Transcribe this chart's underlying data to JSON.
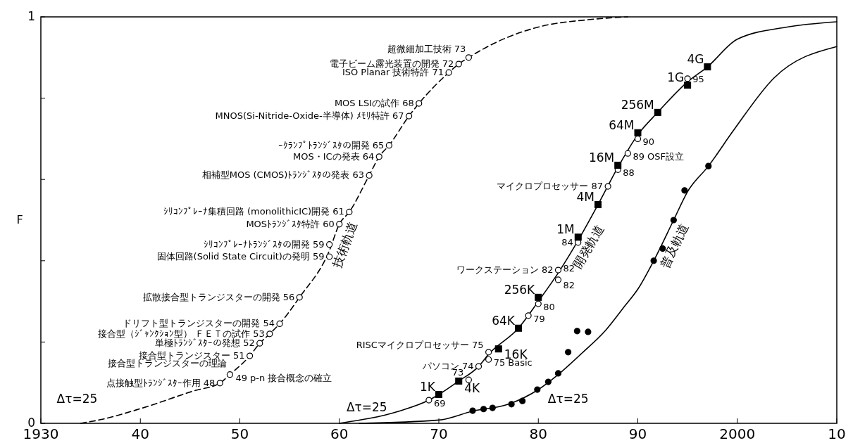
{
  "chart_data": {
    "type": "line",
    "ylabel": "F",
    "xlim": [
      1930,
      2010
    ],
    "xticks": [
      1930,
      {
        "value": 1940,
        "label": "40"
      },
      {
        "value": 1950,
        "label": "50"
      },
      {
        "value": 1960,
        "label": "60"
      },
      {
        "value": 1970,
        "label": "70"
      },
      {
        "value": 1980,
        "label": "80"
      },
      {
        "value": 1990,
        "label": "90"
      },
      2000,
      {
        "value": 2010,
        "label": "10"
      }
    ],
    "ylim": [
      0,
      1
    ],
    "yticks": [
      0,
      {
        "value": 0.2,
        "label": null
      },
      {
        "value": 0.4,
        "label": null
      },
      {
        "value": 0.6,
        "label": null
      },
      {
        "value": 0.8,
        "label": null
      },
      1
    ],
    "series": [
      {
        "name": "技術軌道",
        "color": "#000000",
        "line_style": "dashed",
        "x": [
          1934,
          1936,
          1940,
          1945.4,
          1948,
          1949,
          1951,
          1952,
          1953,
          1954,
          1956,
          1959,
          1960,
          1961,
          1963,
          1964,
          1965,
          1967,
          1968,
          1971,
          1972,
          1973,
          1976,
          1980,
          1985,
          1989
        ],
        "values": [
          0,
          0.009,
          0.036,
          0.08,
          0.099,
          0.12,
          0.166,
          0.197,
          0.22,
          0.245,
          0.31,
          0.425,
          0.49,
          0.52,
          0.61,
          0.656,
          0.684,
          0.756,
          0.787,
          0.863,
          0.884,
          0.9,
          0.94,
          0.975,
          0.993,
          1
        ]
      },
      {
        "name": "開発軌道",
        "color": "#000000",
        "line_style": "solid",
        "x": [
          1960,
          1966,
          1969,
          1970,
          1972,
          1974,
          1975,
          1978,
          1980,
          1982,
          1984,
          1986,
          1988,
          1990,
          1992,
          1995,
          1997,
          2000,
          2005,
          2010
        ],
        "values": [
          0,
          0.03,
          0.057,
          0.071,
          0.104,
          0.14,
          0.17,
          0.234,
          0.3,
          0.37,
          0.45,
          0.538,
          0.63,
          0.71,
          0.765,
          0.84,
          0.877,
          0.945,
          0.975,
          0.988
        ]
      },
      {
        "name": "普及軌道",
        "color": "#000000",
        "line_style": "solid",
        "x": [
          1962,
          1970,
          1973.4,
          1977,
          1980,
          1982,
          1984.4,
          1986.7,
          1988.7,
          1990,
          1991.6,
          1993.6,
          1995,
          1997.1,
          1999.6,
          2003.7,
          2010
        ],
        "values": [
          0,
          0.008,
          0.03,
          0.047,
          0.083,
          0.12,
          0.173,
          0.227,
          0.289,
          0.33,
          0.4,
          0.5,
          0.57,
          0.633,
          0.72,
          0.85,
          0.927
        ]
      },
      {
        "type": "scatter",
        "marker": "circle",
        "color": "#ffffff",
        "x": [
          1948,
          1949,
          1951,
          1952,
          1953,
          1954,
          1956,
          1959,
          1959,
          1960,
          1961,
          1963,
          1964,
          1965,
          1967,
          1968,
          1971,
          1972,
          1973
        ],
        "values": [
          0.099,
          0.12,
          0.166,
          0.197,
          0.22,
          0.245,
          0.31,
          0.41,
          0.44,
          0.49,
          0.52,
          0.61,
          0.656,
          0.684,
          0.756,
          0.787,
          0.863,
          0.884,
          0.9
        ]
      },
      {
        "type": "scatter",
        "marker": "circle",
        "color": "#ffffff",
        "x": [
          1969,
          1973,
          1974,
          1975,
          1975,
          1979,
          1980,
          1982,
          1982,
          1984,
          1987,
          1988,
          1989,
          1990,
          1995
        ],
        "values": [
          0.057,
          0.107,
          0.14,
          0.175,
          0.157,
          0.265,
          0.294,
          0.377,
          0.353,
          0.445,
          0.583,
          0.624,
          0.664,
          0.7,
          0.848
        ]
      },
      {
        "type": "scatter",
        "marker": "square",
        "color": "#000000",
        "x": [
          1970,
          1972,
          1976,
          1978,
          1980,
          1984,
          1986,
          1988,
          1990,
          1992,
          1995,
          1997
        ],
        "values": [
          0.071,
          0.104,
          0.183,
          0.234,
          0.31,
          0.458,
          0.538,
          0.635,
          0.715,
          0.765,
          0.832,
          0.877
        ]
      },
      {
        "type": "scatter",
        "marker": "circle",
        "color": "#000000",
        "x": [
          1973.4,
          1974.5,
          1975.4,
          1977.3,
          1978.4,
          1979.9,
          1981,
          1982,
          1983,
          1983.9,
          1985,
          1991.6,
          1992.5,
          1993.6,
          1994.7,
          1997.1
        ],
        "values": [
          0.031,
          0.035,
          0.038,
          0.047,
          0.055,
          0.083,
          0.102,
          0.123,
          0.175,
          0.227,
          0.225,
          0.4,
          0.43,
          0.5,
          0.573,
          0.633
        ]
      }
    ],
    "annotations": [
      {
        "text": "超微細加工技術 73",
        "x": 1973,
        "y": 0.9
      },
      {
        "text": "電子ビーム露光装置の開発 72",
        "x": 1972,
        "y": 0.884
      },
      {
        "text": "ISO Planar 技術特許 71",
        "x": 1971,
        "y": 0.863
      },
      {
        "text": "MOS LSIの試作 68",
        "x": 1968,
        "y": 0.787
      },
      {
        "text": "MNOS(Si-Nitride-Oxide-半導体) ﾒﾓﾘ特許 67",
        "x": 1967,
        "y": 0.756
      },
      {
        "text": "ｰｸﾗﾝﾌﾟﾄﾗﾝｼﾞｽﾀの開発 65",
        "x": 1965,
        "y": 0.684
      },
      {
        "text": "MOS・ICの発表 64",
        "x": 1964,
        "y": 0.656
      },
      {
        "text": "相補型MOS (CMOS)ﾄﾗﾝｼﾞｽﾀの発表 63",
        "x": 1963,
        "y": 0.61
      },
      {
        "text": "ｼﾘｺﾝﾌﾟﾚｰﾅ集積回路 (monolithicIC)開発 61",
        "x": 1961,
        "y": 0.52
      },
      {
        "text": "MOSﾄﾗﾝｼﾞｽﾀ特許 60",
        "x": 1960,
        "y": 0.49
      },
      {
        "text": "ｼﾘｺﾝﾌﾟﾚｰﾅﾄﾗﾝｼﾞｽﾀの開発 59",
        "x": 1959,
        "y": 0.44
      },
      {
        "text": "固体回路(Solid State Circuit)の発明 59",
        "x": 1959,
        "y": 0.41
      },
      {
        "text": "拡散接合型トランジスターの開発 56",
        "x": 1956,
        "y": 0.31
      },
      {
        "text": "ドリフト型トランジスターの開発 54",
        "x": 1954,
        "y": 0.245
      },
      {
        "text": "接合型（ｼﾞｬﾝｸｼｮﾝ型） ＦＥＴの試作 53",
        "x": 1953,
        "y": 0.22
      },
      {
        "text": "単極ﾄﾗﾝｼﾞｽﾀｰの発想 52",
        "x": 1952,
        "y": 0.197
      },
      {
        "text": "接合型トランジスター 51",
        "x": 1951,
        "y": 0.166
      },
      {
        "text": "接合型トランジスターの理論",
        "x": 1949,
        "y": 0.12
      },
      {
        "text": "49 p-n 接合概念の確立",
        "x": 1949,
        "y": 0.12
      },
      {
        "text": "点接触型ﾄﾗﾝｼﾞｽﾀｰ作用 48",
        "x": 1948,
        "y": 0.099
      },
      {
        "text": "69",
        "x": 1969,
        "y": 0.057
      },
      {
        "text": "73",
        "x": 1973,
        "y": 0.107
      },
      {
        "text": "パソコン 74",
        "x": 1974,
        "y": 0.14
      },
      {
        "text": "RISCマイクロプロセッサー 75",
        "x": 1975,
        "y": 0.175
      },
      {
        "text": "75 Basic",
        "x": 1975,
        "y": 0.157
      },
      {
        "text": "79",
        "x": 1979,
        "y": 0.265
      },
      {
        "text": "80",
        "x": 1980,
        "y": 0.294
      },
      {
        "text": "ワークステーション 82",
        "x": 1982,
        "y": 0.377
      },
      {
        "text": "82",
        "x": 1982,
        "y": 0.377
      },
      {
        "text": "82",
        "x": 1982,
        "y": 0.353
      },
      {
        "text": "84",
        "x": 1984,
        "y": 0.445
      },
      {
        "text": "マイクロプロセッサー 87",
        "x": 1987,
        "y": 0.583
      },
      {
        "text": "88",
        "x": 1988,
        "y": 0.624
      },
      {
        "text": "89 OSF設立",
        "x": 1989,
        "y": 0.664
      },
      {
        "text": "90",
        "x": 1990,
        "y": 0.7
      },
      {
        "text": "95",
        "x": 1995,
        "y": 0.848
      },
      "Δτ=25",
      "Δτ=25",
      "Δτ=25",
      {
        "text": "1K",
        "x": 1970,
        "y": 0.071
      },
      {
        "text": "4K",
        "x": 1972,
        "y": 0.104
      },
      {
        "text": "16K",
        "x": 1976,
        "y": 0.183
      },
      {
        "text": "64K",
        "x": 1978,
        "y": 0.234
      },
      {
        "text": "256K",
        "x": 1980,
        "y": 0.31
      },
      {
        "text": "1M",
        "x": 1984,
        "y": 0.458
      },
      {
        "text": "4M",
        "x": 1986,
        "y": 0.538
      },
      {
        "text": "16M",
        "x": 1988,
        "y": 0.635
      },
      {
        "text": "64M",
        "x": 1990,
        "y": 0.715
      },
      {
        "text": "256M",
        "x": 1992,
        "y": 0.765
      },
      {
        "text": "1G",
        "x": 1995,
        "y": 0.832
      },
      {
        "text": "4G",
        "x": 1997,
        "y": 0.877
      }
    ]
  }
}
